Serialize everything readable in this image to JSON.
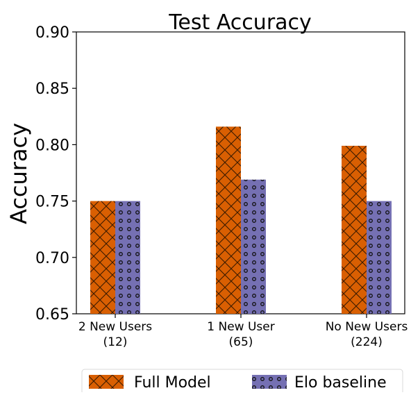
{
  "chart_data": {
    "type": "bar",
    "title": "Test Accuracy",
    "xlabel": "",
    "ylabel": "Accuracy",
    "ylim": [
      0.65,
      0.9
    ],
    "yticks": [
      "0.65",
      "0.70",
      "0.75",
      "0.80",
      "0.85",
      "0.90"
    ],
    "categories": [
      {
        "line1": "2 New Users",
        "line2": "(12)"
      },
      {
        "line1": "1 New User",
        "line2": "(65)"
      },
      {
        "line1": "No New Users",
        "line2": "(224)"
      }
    ],
    "series": [
      {
        "name": "Full Model",
        "values": [
          0.75,
          0.816,
          0.799
        ],
        "color": "#d95f02",
        "hatch": "crosshatch"
      },
      {
        "name": "Elo baseline",
        "values": [
          0.75,
          0.769,
          0.75
        ],
        "color": "#7570b3",
        "hatch": "circles"
      }
    ],
    "grid": false,
    "legend_position": "bottom"
  }
}
